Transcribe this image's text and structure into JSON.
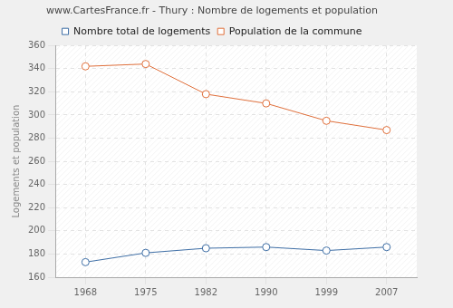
{
  "chart_data": {
    "type": "line",
    "title": "www.CartesFrance.fr - Thury : Nombre de logements et population",
    "y_label": "Logements et population",
    "categories": [
      "1968",
      "1975",
      "1982",
      "1990",
      "1999",
      "2007"
    ],
    "series": [
      {
        "name": "Nombre total de logements",
        "color": "#3f6fa6",
        "marker": "circle",
        "line_style": "solid",
        "values": [
          173,
          181,
          185,
          186,
          183,
          186
        ]
      },
      {
        "name": "Population de la commune",
        "color": "#e0703c",
        "marker": "circle",
        "line_style": "solid",
        "values": [
          342,
          344,
          318,
          310,
          295,
          287
        ]
      }
    ],
    "ylim": [
      160,
      360
    ],
    "yticks": [
      160,
      180,
      200,
      220,
      240,
      260,
      280,
      300,
      320,
      340,
      360
    ],
    "grid": true,
    "legend": "top"
  }
}
